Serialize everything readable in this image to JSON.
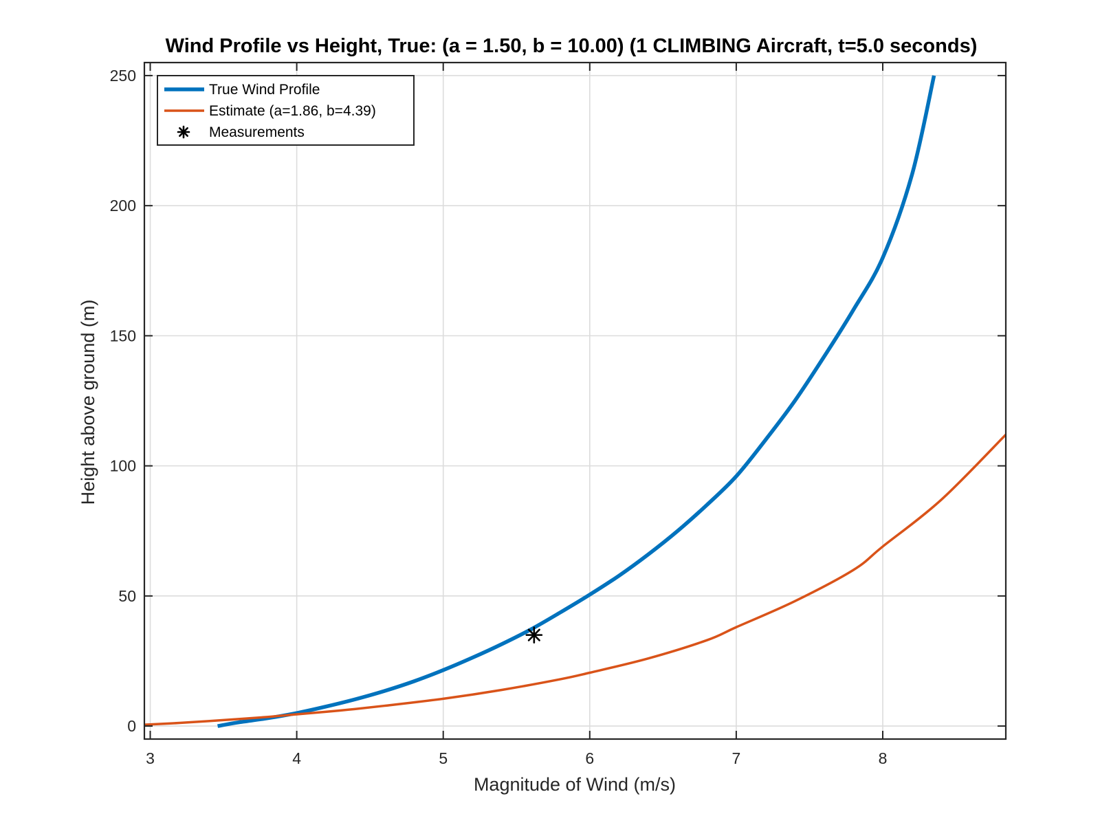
{
  "chart_data": {
    "type": "line",
    "title": "Wind Profile vs Height, True: (a = 1.50, b = 10.00) (1 CLIMBING Aircraft, t=5.0 seconds)",
    "xlabel": "Magnitude of Wind (m/s)",
    "ylabel": "Height above ground (m)",
    "xlim": [
      2.96,
      8.84
    ],
    "ylim": [
      -5,
      255
    ],
    "xticks": [
      3,
      4,
      5,
      6,
      7,
      8
    ],
    "yticks": [
      0,
      50,
      100,
      150,
      200,
      250
    ],
    "grid": true,
    "legend_position": "top-left",
    "series": [
      {
        "name": "True Wind Profile",
        "kind": "line",
        "color": "#0072BD",
        "x": [
          3.46,
          3.6,
          3.8,
          4.0,
          4.2,
          4.4,
          4.6,
          4.8,
          5.0,
          5.2,
          5.4,
          5.6,
          5.8,
          6.0,
          6.2,
          6.4,
          6.6,
          6.8,
          7.0,
          7.2,
          7.4,
          7.6,
          7.8,
          8.0,
          8.2,
          8.35
        ],
        "y": [
          0,
          1.4,
          3.0,
          5.0,
          7.5,
          10.3,
          13.5,
          17.2,
          21.5,
          26.3,
          31.5,
          37.2,
          43.7,
          50.5,
          57.8,
          66,
          75,
          85,
          96,
          110,
          125,
          142,
          160,
          180,
          212,
          250
        ]
      },
      {
        "name": "Estimate (a=1.86, b=4.39)",
        "kind": "line",
        "color": "#D95319",
        "x": [
          2.96,
          3.2,
          3.5,
          3.8,
          4.0,
          4.3,
          4.6,
          5.0,
          5.4,
          5.8,
          6.0,
          6.4,
          6.8,
          7.0,
          7.4,
          7.8,
          8.0,
          8.4,
          8.84
        ],
        "y": [
          0.5,
          1.2,
          2.3,
          3.5,
          4.5,
          6.0,
          7.8,
          10.5,
          13.9,
          18.0,
          20.5,
          26,
          33,
          38,
          48,
          60,
          69,
          87,
          112
        ]
      },
      {
        "name": "Measurements",
        "kind": "marker",
        "color": "#000000",
        "x": [
          5.62
        ],
        "y": [
          35
        ]
      }
    ]
  }
}
